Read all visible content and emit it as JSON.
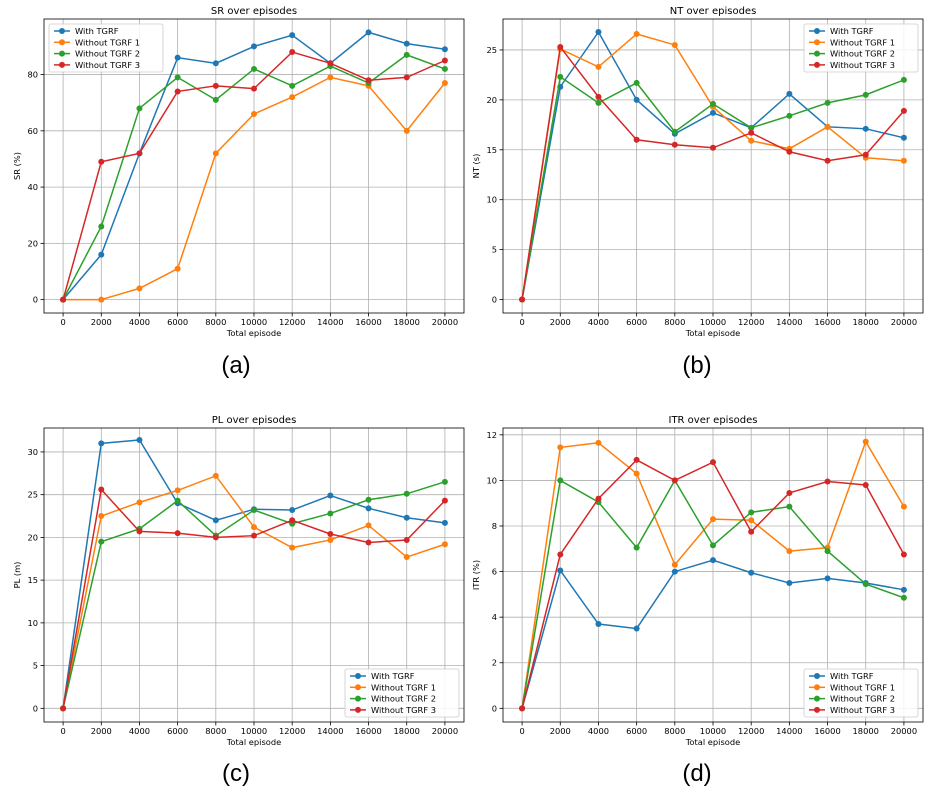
{
  "colors": {
    "s0": "#1f77b4",
    "s1": "#ff7f0e",
    "s2": "#2ca02c",
    "s3": "#d62728"
  },
  "chart_data": [
    {
      "type": "line",
      "title": "SR over episodes",
      "xlabel": "Total episode",
      "ylabel": "SR (%)",
      "x": [
        0,
        2000,
        4000,
        6000,
        8000,
        10000,
        12000,
        14000,
        16000,
        18000,
        20000
      ],
      "xticks": [
        "0",
        "2000",
        "4000",
        "6000",
        "8000",
        "10000",
        "12000",
        "14000",
        "16000",
        "18000",
        "20000"
      ],
      "yticks": [
        "0",
        "20",
        "40",
        "60",
        "80"
      ],
      "ylim": [
        -4.75,
        99.75
      ],
      "grid": true,
      "legend": "top-left",
      "caption": "(a)",
      "series": [
        {
          "name": "With TGRF",
          "values": [
            0,
            16,
            52,
            86,
            84,
            90,
            94,
            84,
            95,
            91,
            89
          ]
        },
        {
          "name": "Without TGRF 1",
          "values": [
            0,
            0,
            4,
            11,
            52,
            66,
            72,
            79,
            76,
            60,
            77
          ]
        },
        {
          "name": "Without TGRF 2",
          "values": [
            0,
            26,
            68,
            79,
            71,
            82,
            76,
            83,
            77,
            87,
            82
          ]
        },
        {
          "name": "Without TGRF 3",
          "values": [
            0,
            49,
            52,
            74,
            76,
            75,
            88,
            84,
            78,
            79,
            85
          ]
        }
      ]
    },
    {
      "type": "line",
      "title": "NT over episodes",
      "xlabel": "Total episode",
      "ylabel": "NT (s)",
      "x": [
        0,
        2000,
        4000,
        6000,
        8000,
        10000,
        12000,
        14000,
        16000,
        18000,
        20000
      ],
      "xticks": [
        "0",
        "2000",
        "4000",
        "6000",
        "8000",
        "10000",
        "12000",
        "14000",
        "16000",
        "18000",
        "20000"
      ],
      "yticks": [
        "0",
        "5",
        "10",
        "15",
        "20",
        "25"
      ],
      "ylim": [
        -1.35,
        28.1
      ],
      "grid": true,
      "legend": "top-right",
      "caption": "(b)",
      "series": [
        {
          "name": "With TGRF",
          "values": [
            0,
            21.3,
            26.8,
            20.0,
            16.6,
            18.7,
            17.2,
            20.6,
            17.3,
            17.1,
            16.2
          ]
        },
        {
          "name": "Without TGRF 1",
          "values": [
            0,
            25.1,
            23.3,
            26.6,
            25.5,
            19.3,
            15.9,
            15.1,
            17.3,
            14.2,
            13.9
          ]
        },
        {
          "name": "Without TGRF 2",
          "values": [
            0,
            22.3,
            19.7,
            21.7,
            16.8,
            19.6,
            17.2,
            18.4,
            19.7,
            20.5,
            22.0
          ]
        },
        {
          "name": "Without TGRF 3",
          "values": [
            0,
            25.3,
            20.3,
            16.0,
            15.5,
            15.2,
            16.7,
            14.8,
            13.9,
            14.5,
            18.9
          ]
        }
      ]
    },
    {
      "type": "line",
      "title": "PL over episodes",
      "xlabel": "Total episode",
      "ylabel": "PL (m)",
      "x": [
        0,
        2000,
        4000,
        6000,
        8000,
        10000,
        12000,
        14000,
        16000,
        18000,
        20000
      ],
      "xticks": [
        "0",
        "2000",
        "4000",
        "6000",
        "8000",
        "10000",
        "12000",
        "14000",
        "16000",
        "18000",
        "20000"
      ],
      "yticks": [
        "0",
        "5",
        "10",
        "15",
        "20",
        "25",
        "30"
      ],
      "ylim": [
        -1.6,
        32.8
      ],
      "grid": true,
      "legend": "bottom-right",
      "caption": "(c)",
      "series": [
        {
          "name": "With TGRF",
          "values": [
            0,
            31.0,
            31.4,
            24.0,
            22.0,
            23.3,
            23.2,
            24.9,
            23.4,
            22.3,
            21.7
          ]
        },
        {
          "name": "Without TGRF 1",
          "values": [
            0,
            22.5,
            24.1,
            25.5,
            27.2,
            21.2,
            18.8,
            19.7,
            21.4,
            17.7,
            19.2
          ]
        },
        {
          "name": "Without TGRF 2",
          "values": [
            0,
            19.5,
            21.0,
            24.3,
            20.2,
            23.2,
            21.6,
            22.8,
            24.4,
            25.1,
            26.5
          ]
        },
        {
          "name": "Without TGRF 3",
          "values": [
            0,
            25.6,
            20.7,
            20.5,
            20.0,
            20.2,
            22.0,
            20.4,
            19.4,
            19.7,
            24.3
          ]
        }
      ]
    },
    {
      "type": "line",
      "title": "ITR over episodes",
      "xlabel": "Total episode",
      "ylabel": "ITR (%)",
      "x": [
        0,
        2000,
        4000,
        6000,
        8000,
        10000,
        12000,
        14000,
        16000,
        18000,
        20000
      ],
      "xticks": [
        "0",
        "2000",
        "4000",
        "6000",
        "8000",
        "10000",
        "12000",
        "14000",
        "16000",
        "18000",
        "20000"
      ],
      "yticks": [
        "0",
        "2",
        "4",
        "6",
        "8",
        "10",
        "12"
      ],
      "ylim": [
        -0.6,
        12.3
      ],
      "grid": true,
      "legend": "bottom-right",
      "caption": "(d)",
      "series": [
        {
          "name": "With TGRF",
          "values": [
            0,
            6.05,
            3.7,
            3.5,
            6.0,
            6.5,
            5.95,
            5.5,
            5.7,
            5.5,
            5.2
          ]
        },
        {
          "name": "Without TGRF 1",
          "values": [
            0,
            11.45,
            11.65,
            10.3,
            6.3,
            8.3,
            8.25,
            6.9,
            7.05,
            11.7,
            8.85
          ]
        },
        {
          "name": "Without TGRF 2",
          "values": [
            0,
            10.0,
            9.05,
            7.05,
            10.0,
            7.15,
            8.6,
            8.85,
            6.9,
            5.45,
            4.85
          ]
        },
        {
          "name": "Without TGRF 3",
          "values": [
            0,
            6.75,
            9.2,
            10.9,
            10.0,
            10.8,
            7.75,
            9.45,
            9.95,
            9.8,
            6.75
          ]
        }
      ]
    }
  ]
}
